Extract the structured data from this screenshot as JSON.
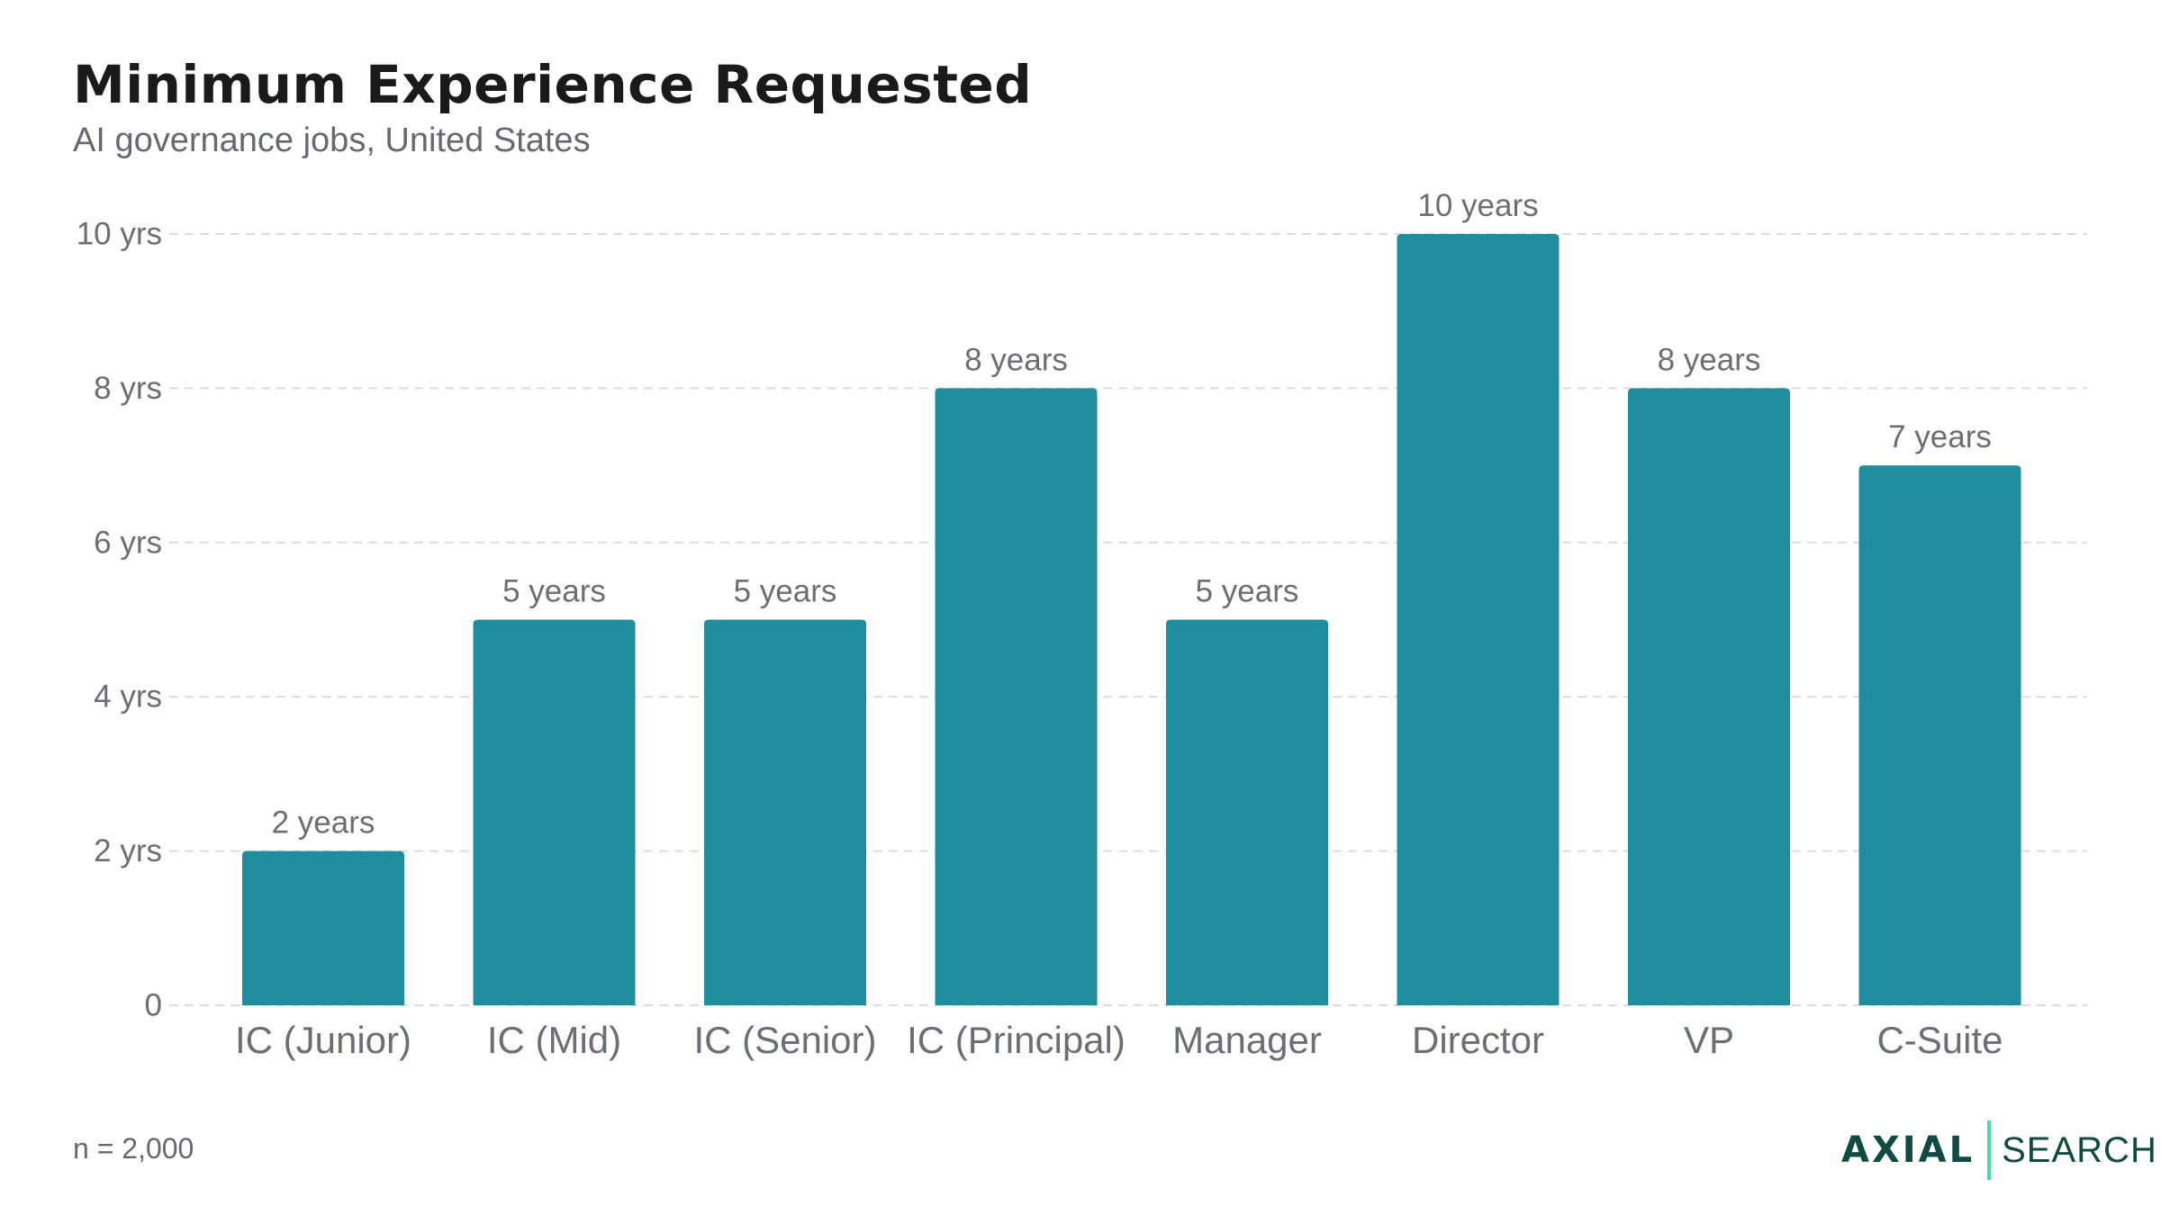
{
  "header": {
    "title": "Minimum Experience Requested",
    "subtitle": "AI governance jobs, United States"
  },
  "footer": {
    "note": "n = 2,000",
    "logo_left": "AXIAL",
    "logo_right": "SEARCH"
  },
  "colors": {
    "bar": "#1e8d9e",
    "grid": "#dcdcdc",
    "axis_text": "#6b6e73",
    "label_text": "#6b6e73",
    "logo_text": "#114a40",
    "logo_accent": "#3ee0a6"
  },
  "chart_data": {
    "type": "bar",
    "title": "Minimum Experience Requested",
    "subtitle": "AI governance jobs, United States",
    "categories": [
      "IC (Junior)",
      "IC (Mid)",
      "IC (Senior)",
      "IC (Principal)",
      "Manager",
      "Director",
      "VP",
      "C-Suite"
    ],
    "values": [
      2,
      5,
      5,
      8,
      5,
      10,
      8,
      7
    ],
    "data_labels": [
      "2 years",
      "5 years",
      "5 years",
      "8 years",
      "5 years",
      "10 years",
      "8 years",
      "7 years"
    ],
    "xlabel": "",
    "ylabel": "",
    "ylim": [
      0,
      10
    ],
    "yticks": [
      0,
      2,
      4,
      6,
      8,
      10
    ],
    "ytick_labels": [
      "0",
      "2 yrs",
      "4 yrs",
      "6 yrs",
      "8 yrs",
      "10 yrs"
    ],
    "grid": true,
    "legend": false
  }
}
